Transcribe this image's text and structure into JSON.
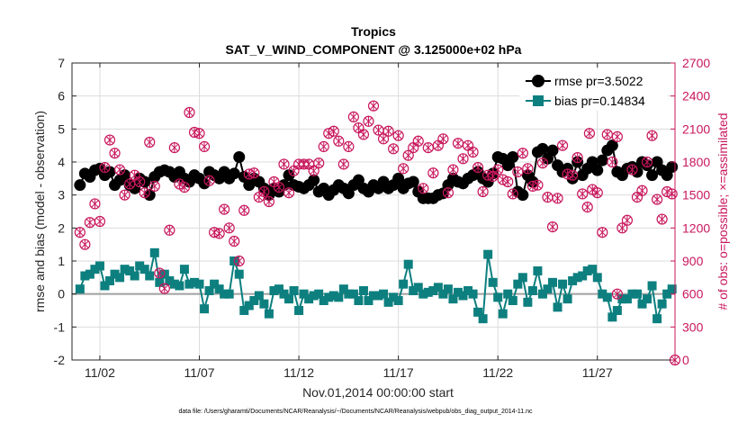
{
  "chart_data": {
    "type": "line",
    "title": "Tropics",
    "subtitle": "SAT_V_WIND_COMPONENT @ 3.125000e+02 hPa",
    "xlabel": "Nov.01,2014 00:00:00 start",
    "ylabel": "rmse and bias (model - observation)",
    "ylabel_right": "# of obs: o=possible; ×=assimilated",
    "footnote": "data file: /Users/gharamti/Documents/NCAR/Reanalysis/~/Documents/NCAR/Reanalysis/webpub/obs_diag_output_2014-11.nc",
    "xlim": [
      0.6,
      30.9
    ],
    "ylim": [
      -2,
      7
    ],
    "ylim_right": [
      0,
      2700
    ],
    "x_ticks": [
      {
        "value": 2,
        "label": "11/02"
      },
      {
        "value": 7,
        "label": "11/07"
      },
      {
        "value": 12,
        "label": "11/12"
      },
      {
        "value": 17,
        "label": "11/17"
      },
      {
        "value": 22,
        "label": "11/22"
      },
      {
        "value": 27,
        "label": "11/27"
      }
    ],
    "y_ticks": [
      "-2",
      "-1",
      "0",
      "1",
      "2",
      "3",
      "4",
      "5",
      "6",
      "7"
    ],
    "y_ticks_right": [
      "0",
      "300",
      "600",
      "900",
      "1200",
      "1500",
      "1800",
      "2100",
      "2400",
      "2700"
    ],
    "grid": true,
    "legend_position": "top-right",
    "x": [
      1.0,
      1.25,
      1.5,
      1.75,
      2.0,
      2.25,
      2.5,
      2.75,
      3.0,
      3.25,
      3.5,
      3.75,
      4.0,
      4.25,
      4.5,
      4.75,
      5.0,
      5.25,
      5.5,
      5.75,
      6.0,
      6.25,
      6.5,
      6.75,
      7.0,
      7.25,
      7.5,
      7.75,
      8.0,
      8.25,
      8.5,
      8.75,
      9.0,
      9.25,
      9.5,
      9.75,
      10.0,
      10.25,
      10.5,
      10.75,
      11.0,
      11.25,
      11.5,
      11.75,
      12.0,
      12.25,
      12.5,
      12.75,
      13.0,
      13.25,
      13.5,
      13.75,
      14.0,
      14.25,
      14.5,
      14.75,
      15.0,
      15.25,
      15.5,
      15.75,
      16.0,
      16.25,
      16.5,
      16.75,
      17.0,
      17.25,
      17.5,
      17.75,
      18.0,
      18.25,
      18.5,
      18.75,
      19.0,
      19.25,
      19.5,
      19.75,
      20.0,
      20.25,
      20.5,
      20.75,
      21.0,
      21.25,
      21.5,
      21.75,
      22.0,
      22.25,
      22.5,
      22.75,
      23.0,
      23.25,
      23.5,
      23.75,
      24.0,
      24.25,
      24.5,
      24.75,
      25.0,
      25.25,
      25.5,
      25.75,
      26.0,
      26.25,
      26.5,
      26.75,
      27.0,
      27.25,
      27.5,
      27.75,
      28.0,
      28.25,
      28.5,
      28.75,
      29.0,
      29.25,
      29.5,
      29.75,
      30.0,
      30.25,
      30.5,
      30.75
    ],
    "series": [
      {
        "name": "rmse pr=3.5022",
        "axis": "left",
        "color": "#000000",
        "marker": "circle",
        "values": [
          3.3,
          3.65,
          3.55,
          3.75,
          3.8,
          3.6,
          3.7,
          3.3,
          3.45,
          3.6,
          3.3,
          3.2,
          3.5,
          3.4,
          3.0,
          3.55,
          3.7,
          3.75,
          3.7,
          3.55,
          3.7,
          3.5,
          3.4,
          3.6,
          3.5,
          3.35,
          3.7,
          3.6,
          3.5,
          3.7,
          3.5,
          3.65,
          4.15,
          3.55,
          3.3,
          3.5,
          3.4,
          3.2,
          3.0,
          3.2,
          3.1,
          3.3,
          3.6,
          3.3,
          3.25,
          3.2,
          3.3,
          3.45,
          3.1,
          3.2,
          3.0,
          3.15,
          3.3,
          3.2,
          3.05,
          3.3,
          3.45,
          3.2,
          3.1,
          3.3,
          3.2,
          3.4,
          3.2,
          3.3,
          3.5,
          3.2,
          3.35,
          3.4,
          3.1,
          2.9,
          2.9,
          2.9,
          3.0,
          3.05,
          3.3,
          3.5,
          3.4,
          3.35,
          3.5,
          3.6,
          3.7,
          3.5,
          3.4,
          3.65,
          4.15,
          4.1,
          3.9,
          4.15,
          3.1,
          3.0,
          3.6,
          3.4,
          4.3,
          4.4,
          4.1,
          4.35,
          3.9,
          3.7,
          3.8,
          3.5,
          4.0,
          3.6,
          3.8,
          4.0,
          3.75,
          4.05,
          4.35,
          4.5,
          3.7,
          3.6,
          3.8,
          3.85,
          3.7,
          4.0,
          3.9,
          3.6,
          4.0,
          3.75,
          3.6,
          3.85
        ]
      },
      {
        "name": "bias pr=0.14834",
        "axis": "left",
        "color": "#0d7f7f",
        "marker": "square",
        "values": [
          0.15,
          0.55,
          0.6,
          0.75,
          0.85,
          0.25,
          0.4,
          0.6,
          0.5,
          0.75,
          0.7,
          0.55,
          0.85,
          0.75,
          0.55,
          1.25,
          0.35,
          0.6,
          0.4,
          0.3,
          0.25,
          0.75,
          0.3,
          0.35,
          0.3,
          -0.45,
          0.1,
          0.3,
          0.15,
          0.0,
          0.0,
          1.0,
          0.6,
          -0.5,
          -0.35,
          -0.2,
          -0.05,
          -0.3,
          -0.6,
          0.1,
          0.15,
          0.0,
          -0.15,
          0.1,
          -0.5,
          0.0,
          -0.15,
          -0.05,
          0.0,
          -0.2,
          -0.1,
          -0.05,
          -0.1,
          0.15,
          0.0,
          0.0,
          -0.2,
          0.1,
          -0.2,
          -0.05,
          -0.05,
          0.0,
          -0.25,
          -0.1,
          -0.2,
          0.3,
          0.9,
          0.1,
          0.2,
          0.0,
          0.05,
          0.1,
          0.2,
          0.0,
          0.15,
          -0.15,
          0.05,
          -0.05,
          0.1,
          0.0,
          -0.55,
          -0.75,
          1.2,
          0.35,
          -0.1,
          -0.6,
          0.0,
          -0.2,
          0.3,
          0.5,
          -0.25,
          0.1,
          0.7,
          0.0,
          0.15,
          0.35,
          -0.4,
          0.3,
          -0.15,
          0.4,
          0.5,
          0.55,
          0.7,
          0.75,
          0.5,
          0.0,
          -0.1,
          -0.7,
          -0.5,
          -0.15,
          -0.15,
          0.0,
          0.0,
          -0.3,
          -0.15,
          0.25,
          -0.75,
          -0.3,
          0.0,
          0.15
        ]
      },
      {
        "name": "# of obs possible",
        "axis": "right",
        "color": "#c8175d",
        "marker": "circle-open",
        "values": [
          1160,
          1050,
          1250,
          1420,
          1260,
          1750,
          2000,
          1880,
          1730,
          1500,
          1600,
          1680,
          1620,
          1520,
          1980,
          1580,
          790,
          650,
          1180,
          1930,
          1600,
          1570,
          2250,
          2070,
          2060,
          1940,
          1630,
          1160,
          1150,
          1370,
          1200,
          1080,
          900,
          1360,
          1690,
          1700,
          1480,
          1530,
          1440,
          1620,
          1570,
          1780,
          1520,
          1720,
          1780,
          1780,
          1780,
          1720,
          1790,
          1940,
          2060,
          2080,
          1990,
          1780,
          1940,
          2210,
          2110,
          2050,
          2170,
          2310,
          2090,
          2010,
          2080,
          1920,
          2040,
          1740,
          1860,
          1930,
          1990,
          1560,
          1930,
          1700,
          1950,
          2010,
          1520,
          1730,
          1970,
          1830,
          1950,
          1890,
          1750,
          1530,
          1680,
          1670,
          1730,
          1640,
          1620,
          1510,
          1710,
          1880,
          1740,
          1580,
          1590,
          1790,
          1480,
          1210,
          1470,
          1950,
          1690,
          1680,
          1840,
          1510,
          1390,
          1550,
          1520,
          1160,
          2050,
          1800,
          2030,
          1200,
          1270,
          1730,
          1480,
          1540,
          1800,
          2040,
          1460,
          1280,
          1530,
          1510
        ]
      }
    ],
    "extra_points_right": [
      {
        "x": 26.6,
        "y": 2060
      },
      {
        "x": 28.0,
        "y": 600
      },
      {
        "x": 26.6,
        "y": 2440
      },
      {
        "x": 30.9,
        "y": 0
      }
    ]
  }
}
